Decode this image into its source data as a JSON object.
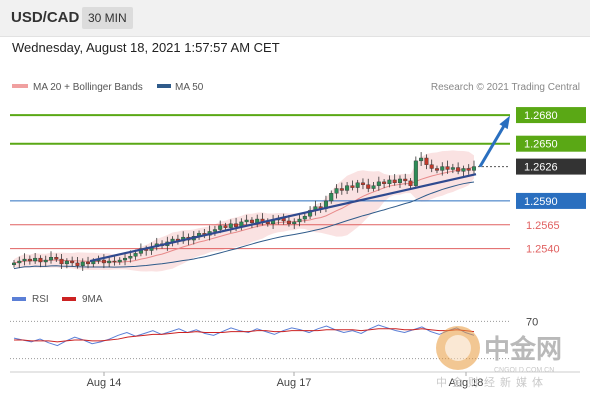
{
  "header": {
    "symbol": "USD/CAD",
    "timeframe": "30 MIN",
    "datetime": "Wednesday, August 18, 2021 1:57:57 AM CET"
  },
  "legend": {
    "items": [
      {
        "label": "MA 20 + Bollinger Bands",
        "color": "#f0a0a0"
      },
      {
        "label": "MA 50",
        "color": "#2f5b8a"
      }
    ],
    "credit": "Research © 2021 Trading Central"
  },
  "rsi_legend": {
    "items": [
      {
        "label": "RSI",
        "color": "#5b7fd6"
      },
      {
        "label": "9MA",
        "color": "#cc2222"
      }
    ]
  },
  "watermark": {
    "brand": "中金网",
    "domain": "CNGOLD.COM.CN",
    "tagline": "中金财经新媒体"
  },
  "chart_data": {
    "type": "candlestick",
    "title": "USD/CAD",
    "y_range": [
      1.2505,
      1.27
    ],
    "x_ticks": [
      "Aug 14",
      "Aug 17",
      "Aug 18"
    ],
    "levels": [
      {
        "label": "1.2680",
        "value": 1.268,
        "kind": "resistance",
        "color": "#5aa815"
      },
      {
        "label": "1.2650",
        "value": 1.265,
        "kind": "resistance",
        "color": "#5aa815"
      },
      {
        "label": "1.2626",
        "value": 1.2626,
        "kind": "last_price",
        "color": "#333333"
      },
      {
        "label": "1.2590",
        "value": 1.259,
        "kind": "pivot",
        "color": "#2a6fbf"
      },
      {
        "label": "1.2565",
        "value": 1.2565,
        "kind": "support",
        "color": "#e06060"
      },
      {
        "label": "1.2540",
        "value": 1.254,
        "kind": "support",
        "color": "#e06060"
      }
    ],
    "close_series": [
      1.2525,
      1.2527,
      1.2529,
      1.2527,
      1.253,
      1.2526,
      1.2528,
      1.2531,
      1.2529,
      1.2524,
      1.2527,
      1.2525,
      1.2522,
      1.2526,
      1.2524,
      1.2527,
      1.2528,
      1.2525,
      1.2527,
      1.2526,
      1.2528,
      1.253,
      1.2532,
      1.2535,
      1.254,
      1.2538,
      1.2542,
      1.2545,
      1.2543,
      1.2547,
      1.255,
      1.2548,
      1.2552,
      1.2549,
      1.2553,
      1.2556,
      1.2554,
      1.2558,
      1.256,
      1.2564,
      1.2562,
      1.2566,
      1.2563,
      1.2568,
      1.257,
      1.2567,
      1.2571,
      1.2568,
      1.2566,
      1.257,
      1.2572,
      1.2569,
      1.2566,
      1.2568,
      1.2571,
      1.2574,
      1.258,
      1.2584,
      1.2582,
      1.259,
      1.2598,
      1.2603,
      1.2601,
      1.2606,
      1.2604,
      1.2609,
      1.2607,
      1.2603,
      1.2606,
      1.261,
      1.2608,
      1.2612,
      1.2609,
      1.2613,
      1.2611,
      1.2606,
      1.2632,
      1.2635,
      1.2628,
      1.2624,
      1.2622,
      1.2626,
      1.2623,
      1.2625,
      1.2621,
      1.2624,
      1.2622,
      1.2626
    ],
    "trendline": {
      "from_close_index": 14,
      "from": 1.2527,
      "to_close_index": 87,
      "to": 1.2618
    },
    "projection": {
      "from": 1.2626,
      "to": 1.268
    },
    "rsi": {
      "level_label": "70",
      "level": 70,
      "range": [
        20,
        80
      ],
      "rsi_series": [
        52,
        50,
        48,
        51,
        47,
        44,
        49,
        53,
        50,
        46,
        48,
        51,
        55,
        58,
        54,
        57,
        60,
        56,
        59,
        62,
        58,
        61,
        57,
        55,
        59,
        63,
        60,
        58,
        62,
        59,
        56,
        60,
        63,
        61,
        58,
        62,
        65,
        61,
        58,
        60,
        57,
        62,
        66,
        63,
        60,
        58,
        61,
        64,
        59,
        56,
        60,
        63,
        58,
        55
      ],
      "ma_series": [
        50,
        50,
        49,
        49,
        49,
        48,
        49,
        50,
        50,
        49,
        49,
        50,
        51,
        53,
        54,
        55,
        56,
        56,
        57,
        58,
        58,
        59,
        58,
        58,
        58,
        59,
        59,
        59,
        60,
        60,
        59,
        59,
        60,
        60,
        60,
        60,
        61,
        61,
        61,
        61,
        60,
        61,
        62,
        62,
        62,
        61,
        61,
        62,
        61,
        60,
        60,
        61,
        60,
        59
      ]
    }
  }
}
